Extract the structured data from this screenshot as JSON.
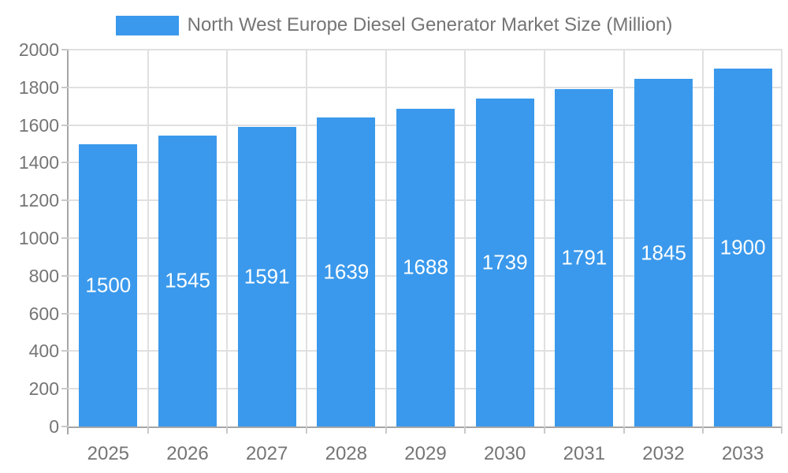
{
  "chart_data": {
    "type": "bar",
    "title": "North West Europe Diesel Generator Market Size (Million)",
    "legend_position": "top",
    "categories": [
      "2025",
      "2026",
      "2027",
      "2028",
      "2029",
      "2030",
      "2031",
      "2032",
      "2033"
    ],
    "series": [
      {
        "name": "North West Europe Diesel Generator Market Size (Million)",
        "values": [
          1500,
          1545,
          1591,
          1639,
          1688,
          1739,
          1791,
          1845,
          1900
        ]
      }
    ],
    "xlabel": "",
    "ylabel": "",
    "ylim": [
      0,
      2000
    ],
    "yticks": [
      0,
      200,
      400,
      600,
      800,
      1000,
      1200,
      1400,
      1600,
      1800,
      2000
    ],
    "grid": true,
    "value_label_placement": "inside-center",
    "colors": {
      "bar": "#3A99EC",
      "grid": "#E0E0E0",
      "tick": "#C9C9C9",
      "axis": "#A6A6A6",
      "text": "#757575",
      "value_text": "#FFFFFF",
      "bg": "#FFFFFF"
    }
  }
}
